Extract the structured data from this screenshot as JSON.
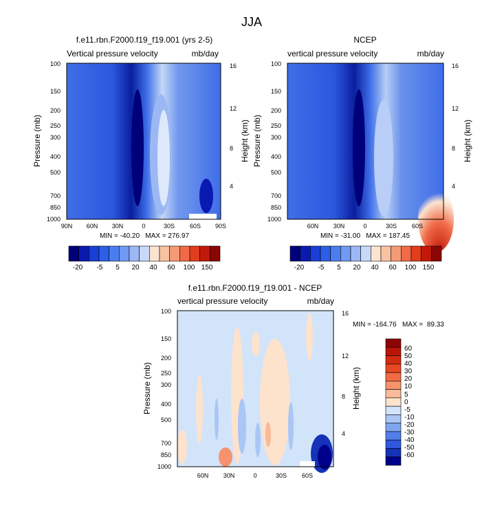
{
  "page_title": "JJA",
  "chart_data": [
    {
      "type": "heatmap",
      "title": "f.e11.rbn.F2000.f19_f19.001 (yrs 2-5)",
      "subtitle_left": "Vertical pressure velocity",
      "subtitle_right": "mb/day",
      "ylabel": "Pressure (mb)",
      "y2label": "Height (km)",
      "x_ticks": [
        "90N",
        "60N",
        "30N",
        "0",
        "30S",
        "60S",
        "90S"
      ],
      "y_ticks": [
        "100",
        "150",
        "200",
        "250",
        "300",
        "400",
        "500",
        "700",
        "850",
        "1000"
      ],
      "y2_ticks": [
        "16",
        "12",
        "8",
        "4"
      ],
      "stats": "MIN = -40.20   MAX = 276.97",
      "min": -40.2,
      "max": 276.97,
      "colorbar_labels": [
        "-20",
        "-5",
        "5",
        "20",
        "40",
        "60",
        "100",
        "150"
      ]
    },
    {
      "type": "heatmap",
      "title": "NCEP",
      "subtitle_left": "vertical pressure velocity",
      "subtitle_right": "mb/day",
      "ylabel": "Pressure (mb)",
      "y2label": "Height (km)",
      "x_ticks": [
        "60N",
        "30N",
        "0",
        "30S",
        "60S"
      ],
      "y_ticks": [
        "100",
        "150",
        "200",
        "250",
        "300",
        "400",
        "500",
        "700",
        "850",
        "1000"
      ],
      "y2_ticks": [
        "16",
        "12",
        "8",
        "4"
      ],
      "stats": "MIN = -31.00   MAX = 187.45",
      "min": -31.0,
      "max": 187.45,
      "colorbar_labels": [
        "-20",
        "-5",
        "5",
        "20",
        "40",
        "60",
        "100",
        "150"
      ]
    },
    {
      "type": "heatmap",
      "title": "f.e11.rbn.F2000.f19_f19.001 - NCEP",
      "subtitle_left": "vertical pressure velocity",
      "subtitle_right": "mb/day",
      "ylabel": "Pressure (mb)",
      "y2label": "Height (km)",
      "x_ticks": [
        "60N",
        "30N",
        "0",
        "30S",
        "60S"
      ],
      "y_ticks": [
        "100",
        "150",
        "200",
        "250",
        "300",
        "400",
        "500",
        "700",
        "850",
        "1000"
      ],
      "y2_ticks": [
        "16",
        "12",
        "8",
        "4"
      ],
      "stats": "MIN = -164.76   MAX =  89.33",
      "min": -164.76,
      "max": 89.33,
      "colorbar_labels": [
        "60",
        "50",
        "40",
        "30",
        "20",
        "10",
        "5",
        "0",
        "-5",
        "-10",
        "-20",
        "-30",
        "-40",
        "-50",
        "-60"
      ]
    }
  ],
  "colors": {
    "abs_scale": [
      "#00007a",
      "#0a1ab0",
      "#1a3fd6",
      "#2c5fe6",
      "#4a7ef0",
      "#7099f2",
      "#9cb8f4",
      "#c7d9f7",
      "#fce3cf",
      "#f9c3a3",
      "#f59a76",
      "#f06a48",
      "#e23d1c",
      "#c21a0a",
      "#8c0505"
    ],
    "diff_scale": [
      "#8c0505",
      "#b81508",
      "#d42b10",
      "#e8481f",
      "#f26a42",
      "#f6926c",
      "#f9b99a",
      "#fde2cc",
      "#d2e4fa",
      "#a9c6f5",
      "#7ea6f0",
      "#527eea",
      "#2f58dc",
      "#1532b8",
      "#00008a"
    ]
  }
}
